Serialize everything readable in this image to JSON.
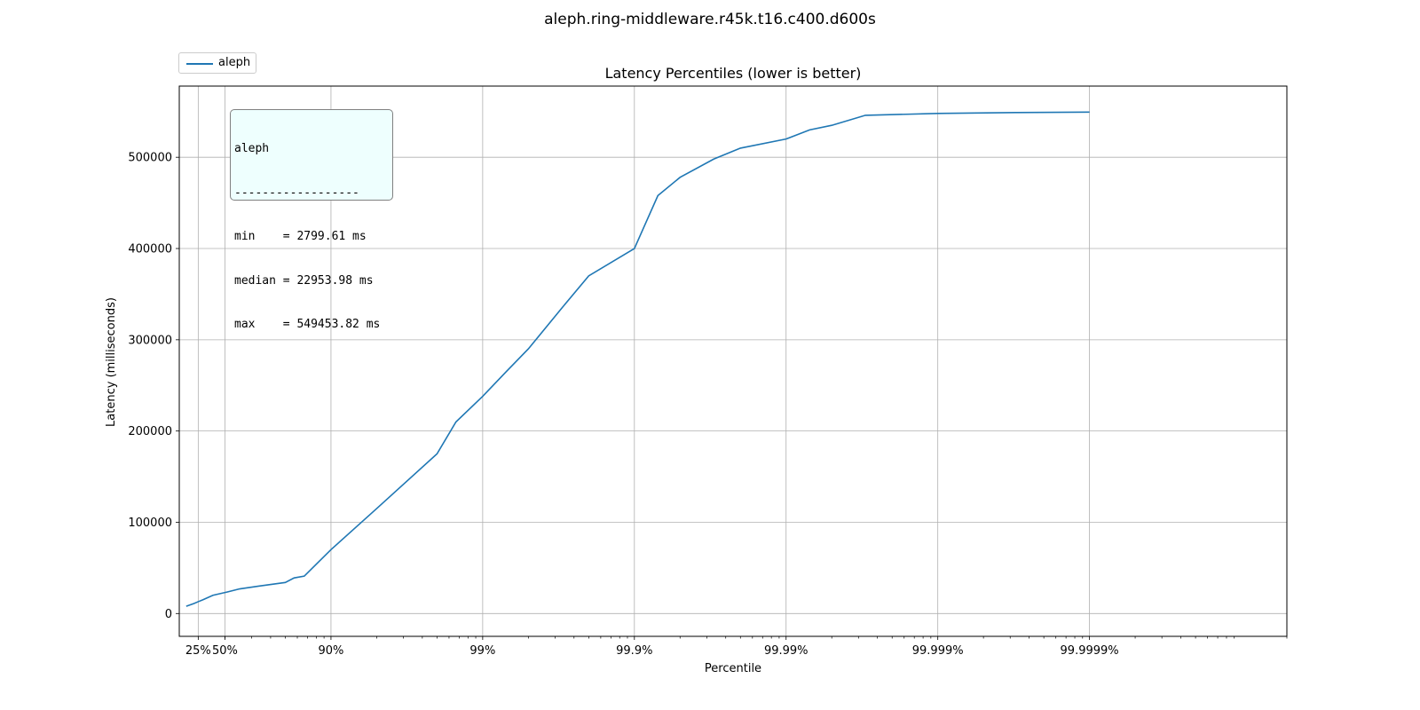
{
  "figure_title": "aleph.ring-middleware.r45k.t16.c400.d600s",
  "legend": {
    "label": "aleph",
    "color": "#1f77b4"
  },
  "stats_box": {
    "lines": [
      "aleph",
      "------------------",
      "min    = 2799.61 ms",
      "median = 22953.98 ms",
      "max    = 549453.82 ms"
    ]
  },
  "chart_data": {
    "type": "line",
    "title": "Latency Percentiles (lower is better)",
    "xlabel": "Percentile",
    "ylabel": "Latency (milliseconds)",
    "x_scale": "log(1/(1-p))",
    "xlim": [
      0.0,
      0.99999995
    ],
    "ylim": [
      -25000,
      578000
    ],
    "grid": true,
    "legend_position": "top-left, outside plot",
    "x_ticks": [
      {
        "value": 0.25,
        "label": "25%"
      },
      {
        "value": 0.5,
        "label": "50%"
      },
      {
        "value": 0.9,
        "label": "90%"
      },
      {
        "value": 0.99,
        "label": "99%"
      },
      {
        "value": 0.999,
        "label": "99.9%"
      },
      {
        "value": 0.9999,
        "label": "99.99%"
      },
      {
        "value": 0.99999,
        "label": "99.999%"
      },
      {
        "value": 0.999999,
        "label": "99.9999%"
      }
    ],
    "y_ticks": [
      {
        "value": 0,
        "label": "0"
      },
      {
        "value": 100000,
        "label": "100000"
      },
      {
        "value": 200000,
        "label": "200000"
      },
      {
        "value": 300000,
        "label": "300000"
      },
      {
        "value": 400000,
        "label": "400000"
      },
      {
        "value": 500000,
        "label": "500000"
      }
    ],
    "series": [
      {
        "name": "aleph",
        "color": "#1f77b4",
        "points": [
          [
            0.1,
            8000
          ],
          [
            0.2,
            11000
          ],
          [
            0.25,
            13000
          ],
          [
            0.3,
            15000
          ],
          [
            0.4,
            20000
          ],
          [
            0.5,
            23000
          ],
          [
            0.6,
            27000
          ],
          [
            0.7,
            30000
          ],
          [
            0.8,
            34000
          ],
          [
            0.825,
            39000
          ],
          [
            0.85,
            41000
          ],
          [
            0.9,
            70000
          ],
          [
            0.95,
            115000
          ],
          [
            0.98,
            175000
          ],
          [
            0.985,
            210000
          ],
          [
            0.99,
            238000
          ],
          [
            0.993,
            265000
          ],
          [
            0.995,
            290000
          ],
          [
            0.997,
            335000
          ],
          [
            0.998,
            370000
          ],
          [
            0.999,
            400000
          ],
          [
            0.9993,
            458000
          ],
          [
            0.9995,
            478000
          ],
          [
            0.9997,
            498000
          ],
          [
            0.9998,
            510000
          ],
          [
            0.9999,
            520000
          ],
          [
            0.99993,
            530000
          ],
          [
            0.99995,
            535000
          ],
          [
            0.99997,
            546000
          ],
          [
            0.99999,
            548000
          ],
          [
            0.999997,
            549000
          ],
          [
            0.999999,
            549453.82
          ]
        ]
      }
    ]
  }
}
